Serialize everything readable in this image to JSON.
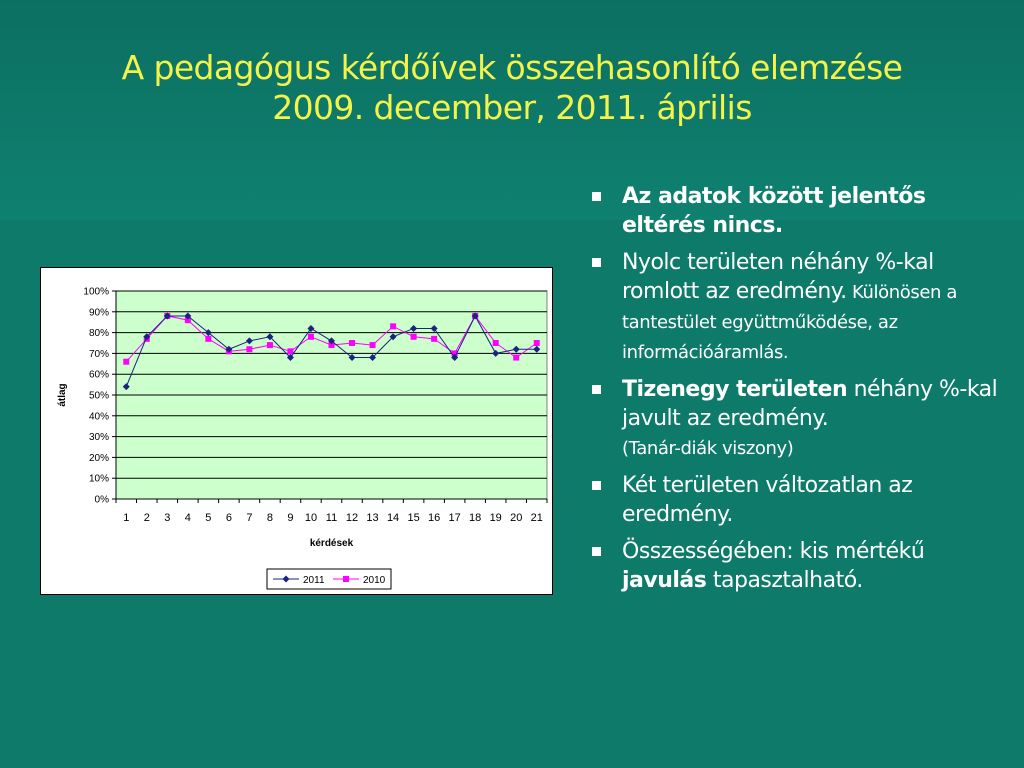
{
  "slide": {
    "title_line1": "A pedagógus kérdőívek összehasonlító elemzése",
    "title_line2": "2009. december, 2011. április"
  },
  "bullets": [
    {
      "bold": "Az adatok között jelentős eltérés nincs.",
      "normal": "",
      "small": ""
    },
    {
      "bold": "",
      "normal": "Nyolc területen néhány %-kal romlott az eredmény.",
      "small": " Különösen a tantestület együttműködése, az információáramlás."
    },
    {
      "bold": "Tizenegy területen",
      "normal": " néhány %-kal javult az eredmény.",
      "small": "(Tanár-diák viszony)"
    },
    {
      "bold": "",
      "normal": "Két területen változatlan az eredmény.",
      "small": ""
    },
    {
      "pre": "Összességében: kis mértékű ",
      "bold": "javulás",
      "normal": " tapasztalható.",
      "small": ""
    }
  ],
  "chart_data": {
    "type": "line",
    "xlabel": "kérdések",
    "ylabel": "átlag",
    "ylim": [
      0,
      100
    ],
    "yticks": [
      "0%",
      "10%",
      "20%",
      "30%",
      "40%",
      "50%",
      "60%",
      "70%",
      "80%",
      "90%",
      "100%"
    ],
    "categories": [
      "1",
      "2",
      "3",
      "4",
      "5",
      "6",
      "7",
      "8",
      "9",
      "10",
      "11",
      "12",
      "13",
      "14",
      "15",
      "16",
      "17",
      "18",
      "19",
      "20",
      "21"
    ],
    "series": [
      {
        "name": "2011",
        "color": "#1a237e",
        "marker": "diamond",
        "values": [
          54,
          78,
          88,
          88,
          80,
          72,
          76,
          78,
          68,
          82,
          76,
          68,
          68,
          78,
          82,
          82,
          68,
          88,
          70,
          72,
          72
        ]
      },
      {
        "name": "2010",
        "color": "#ff00ff",
        "marker": "square",
        "values": [
          66,
          77,
          88,
          86,
          77,
          71,
          72,
          74,
          71,
          78,
          74,
          75,
          74,
          83,
          78,
          77,
          70,
          88,
          75,
          68,
          75
        ]
      }
    ],
    "plot_background": "#ccffcc",
    "grid": true,
    "legend_position": "bottom"
  }
}
